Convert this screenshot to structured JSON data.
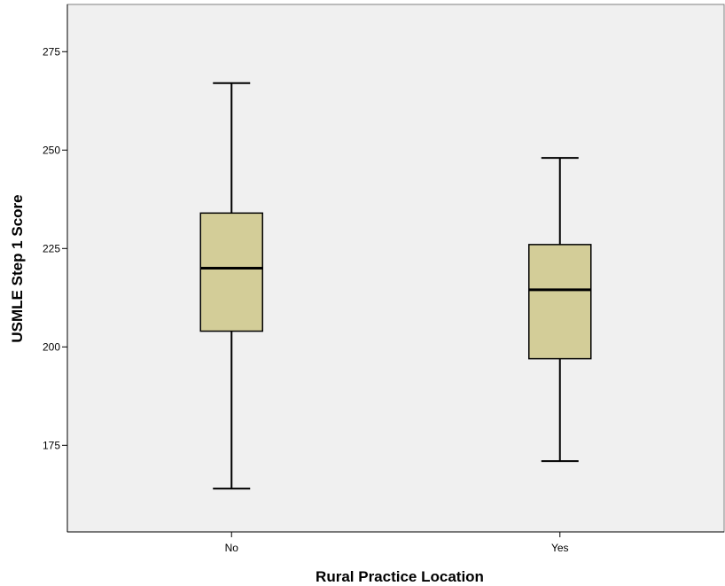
{
  "chart_data": {
    "type": "boxplot",
    "xlabel": "Rural Practice Location",
    "ylabel": "USMLE Step 1 Score",
    "ylim": [
      153,
      287
    ],
    "yticks": [
      175,
      200,
      225,
      250,
      275
    ],
    "grid": false,
    "categories": [
      "No",
      "Yes"
    ],
    "boxes": [
      {
        "category": "No",
        "min": 164,
        "q1": 204,
        "median": 220,
        "q3": 234,
        "max": 267
      },
      {
        "category": "Yes",
        "min": 171,
        "q1": 197,
        "median": 214.5,
        "q3": 226,
        "max": 248
      }
    ]
  },
  "colors": {
    "plot_background": "#f0f0f0",
    "box_fill": "#d3cd98",
    "stroke": "#000000"
  }
}
